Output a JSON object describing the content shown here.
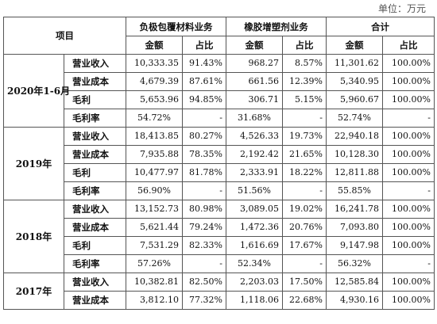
{
  "unit_label": "单位：万元",
  "header": {
    "item": "项目",
    "groups": [
      "负极包覆材料业务",
      "橡胶增塑剂业务",
      "合计"
    ],
    "sub": [
      "金额",
      "占比",
      "金额",
      "占比",
      "金额",
      "占比"
    ]
  },
  "periods": [
    {
      "label": "2020年1-6月",
      "rows": [
        {
          "metric": "营业收入",
          "cells": [
            "10,333.35",
            "91.43%",
            "968.27",
            "8.57%",
            "11,301.62",
            "100.00%"
          ]
        },
        {
          "metric": "营业成本",
          "cells": [
            "4,679.39",
            "87.61%",
            "661.56",
            "12.39%",
            "5,340.95",
            "100.00%"
          ]
        },
        {
          "metric": "毛利",
          "cells": [
            "5,653.96",
            "94.85%",
            "306.71",
            "5.15%",
            "5,960.67",
            "100.00%"
          ]
        },
        {
          "metric": "毛利率",
          "cells": [
            "54.72%",
            "-",
            "31.68%",
            "-",
            "52.74%",
            "-"
          ]
        }
      ]
    },
    {
      "label": "2019年",
      "rows": [
        {
          "metric": "营业收入",
          "cells": [
            "18,413.85",
            "80.27%",
            "4,526.33",
            "19.73%",
            "22,940.18",
            "100.00%"
          ]
        },
        {
          "metric": "营业成本",
          "cells": [
            "7,935.88",
            "78.35%",
            "2,192.42",
            "21.65%",
            "10,128.30",
            "100.00%"
          ]
        },
        {
          "metric": "毛利",
          "cells": [
            "10,477.97",
            "81.78%",
            "2,333.91",
            "18.22%",
            "12,811.88",
            "100.00%"
          ]
        },
        {
          "metric": "毛利率",
          "cells": [
            "56.90%",
            "-",
            "51.56%",
            "-",
            "55.85%",
            "-"
          ]
        }
      ]
    },
    {
      "label": "2018年",
      "rows": [
        {
          "metric": "营业收入",
          "cells": [
            "13,152.73",
            "80.98%",
            "3,089.05",
            "19.02%",
            "16,241.78",
            "100.00%"
          ]
        },
        {
          "metric": "营业成本",
          "cells": [
            "5,621.44",
            "79.24%",
            "1,472.36",
            "20.76%",
            "7,093.80",
            "100.00%"
          ]
        },
        {
          "metric": "毛利",
          "cells": [
            "7,531.29",
            "82.33%",
            "1,616.69",
            "17.67%",
            "9,147.98",
            "100.00%"
          ]
        },
        {
          "metric": "毛利率",
          "cells": [
            "57.26%",
            "-",
            "52.34%",
            "-",
            "56.32%",
            "-"
          ]
        }
      ]
    },
    {
      "label": "2017年",
      "rows": [
        {
          "metric": "营业收入",
          "cells": [
            "10,382.81",
            "82.50%",
            "2,203.03",
            "17.50%",
            "12,585.84",
            "100.00%"
          ]
        },
        {
          "metric": "营业成本",
          "cells": [
            "3,812.10",
            "77.32%",
            "1,118.06",
            "22.68%",
            "4,930.16",
            "100.00%"
          ]
        }
      ]
    }
  ]
}
